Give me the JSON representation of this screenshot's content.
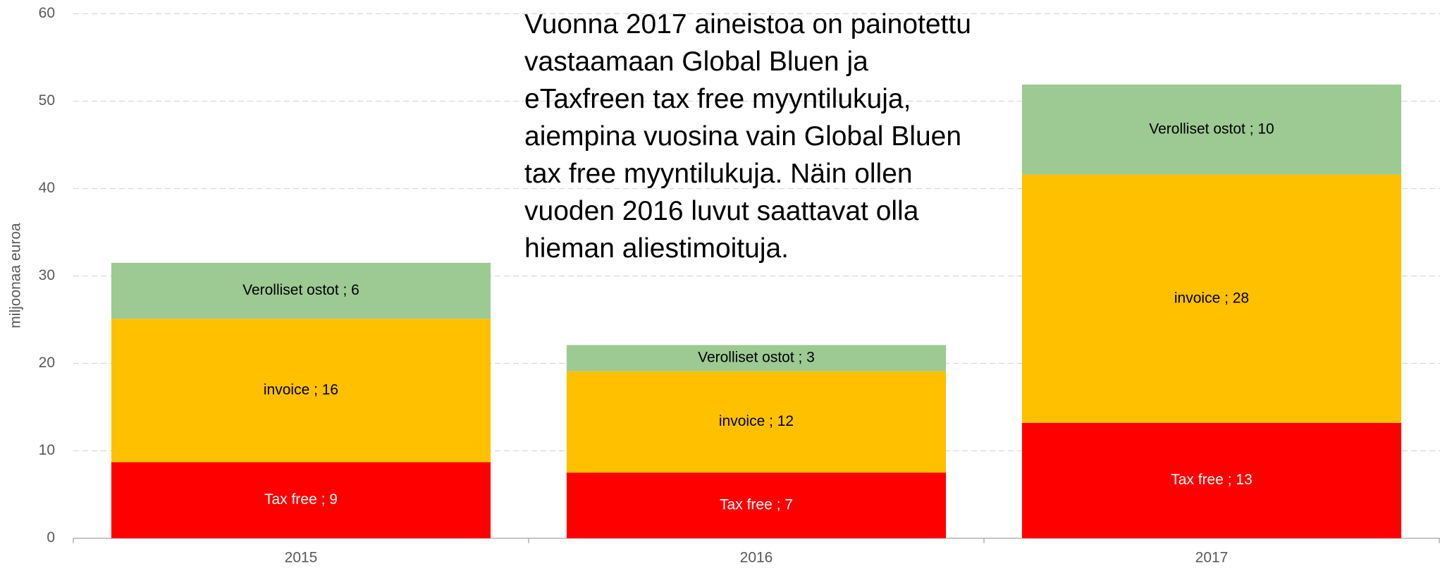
{
  "chart_data": {
    "type": "stacked_bar",
    "y_label": "miljoonaa euroa",
    "annotation": "Vuonna 2017 aineistoa on painotettu vastaamaan Global Bluen ja eTaxfreen tax free myyntilukuja, aiempina vuosina vain Global Bluen tax free myyntilukuja. Näin ollen vuoden 2016 luvut saattavat olla hieman aliestimoituja.",
    "categories": [
      "2015",
      "2016",
      "2017"
    ],
    "series": [
      {
        "name": "Tax free",
        "color": "#ff0000",
        "label_color": "#ffffff",
        "values": [
          8.7,
          7.5,
          13.2
        ],
        "value_labels": [
          "Tax free ;  9",
          "Tax free ;  7",
          "Tax free ;  13"
        ]
      },
      {
        "name": "invoice",
        "color": "#ffc000",
        "label_color": "#000000",
        "values": [
          16.4,
          11.6,
          28.4
        ],
        "value_labels": [
          "invoice ;  16",
          "invoice ;  12",
          "invoice ;  28"
        ]
      },
      {
        "name": "Verolliset ostot",
        "color": "#9dc993",
        "label_color": "#000000",
        "values": [
          6.4,
          3.0,
          10.3
        ],
        "value_labels": [
          "Verolliset ostot ;  6",
          "Verolliset ostot ;  3",
          "Verolliset ostot ;  10"
        ]
      }
    ],
    "ylim": [
      0,
      60
    ],
    "yticks": [
      0,
      10,
      20,
      30,
      40,
      50,
      60
    ],
    "grid": true
  }
}
